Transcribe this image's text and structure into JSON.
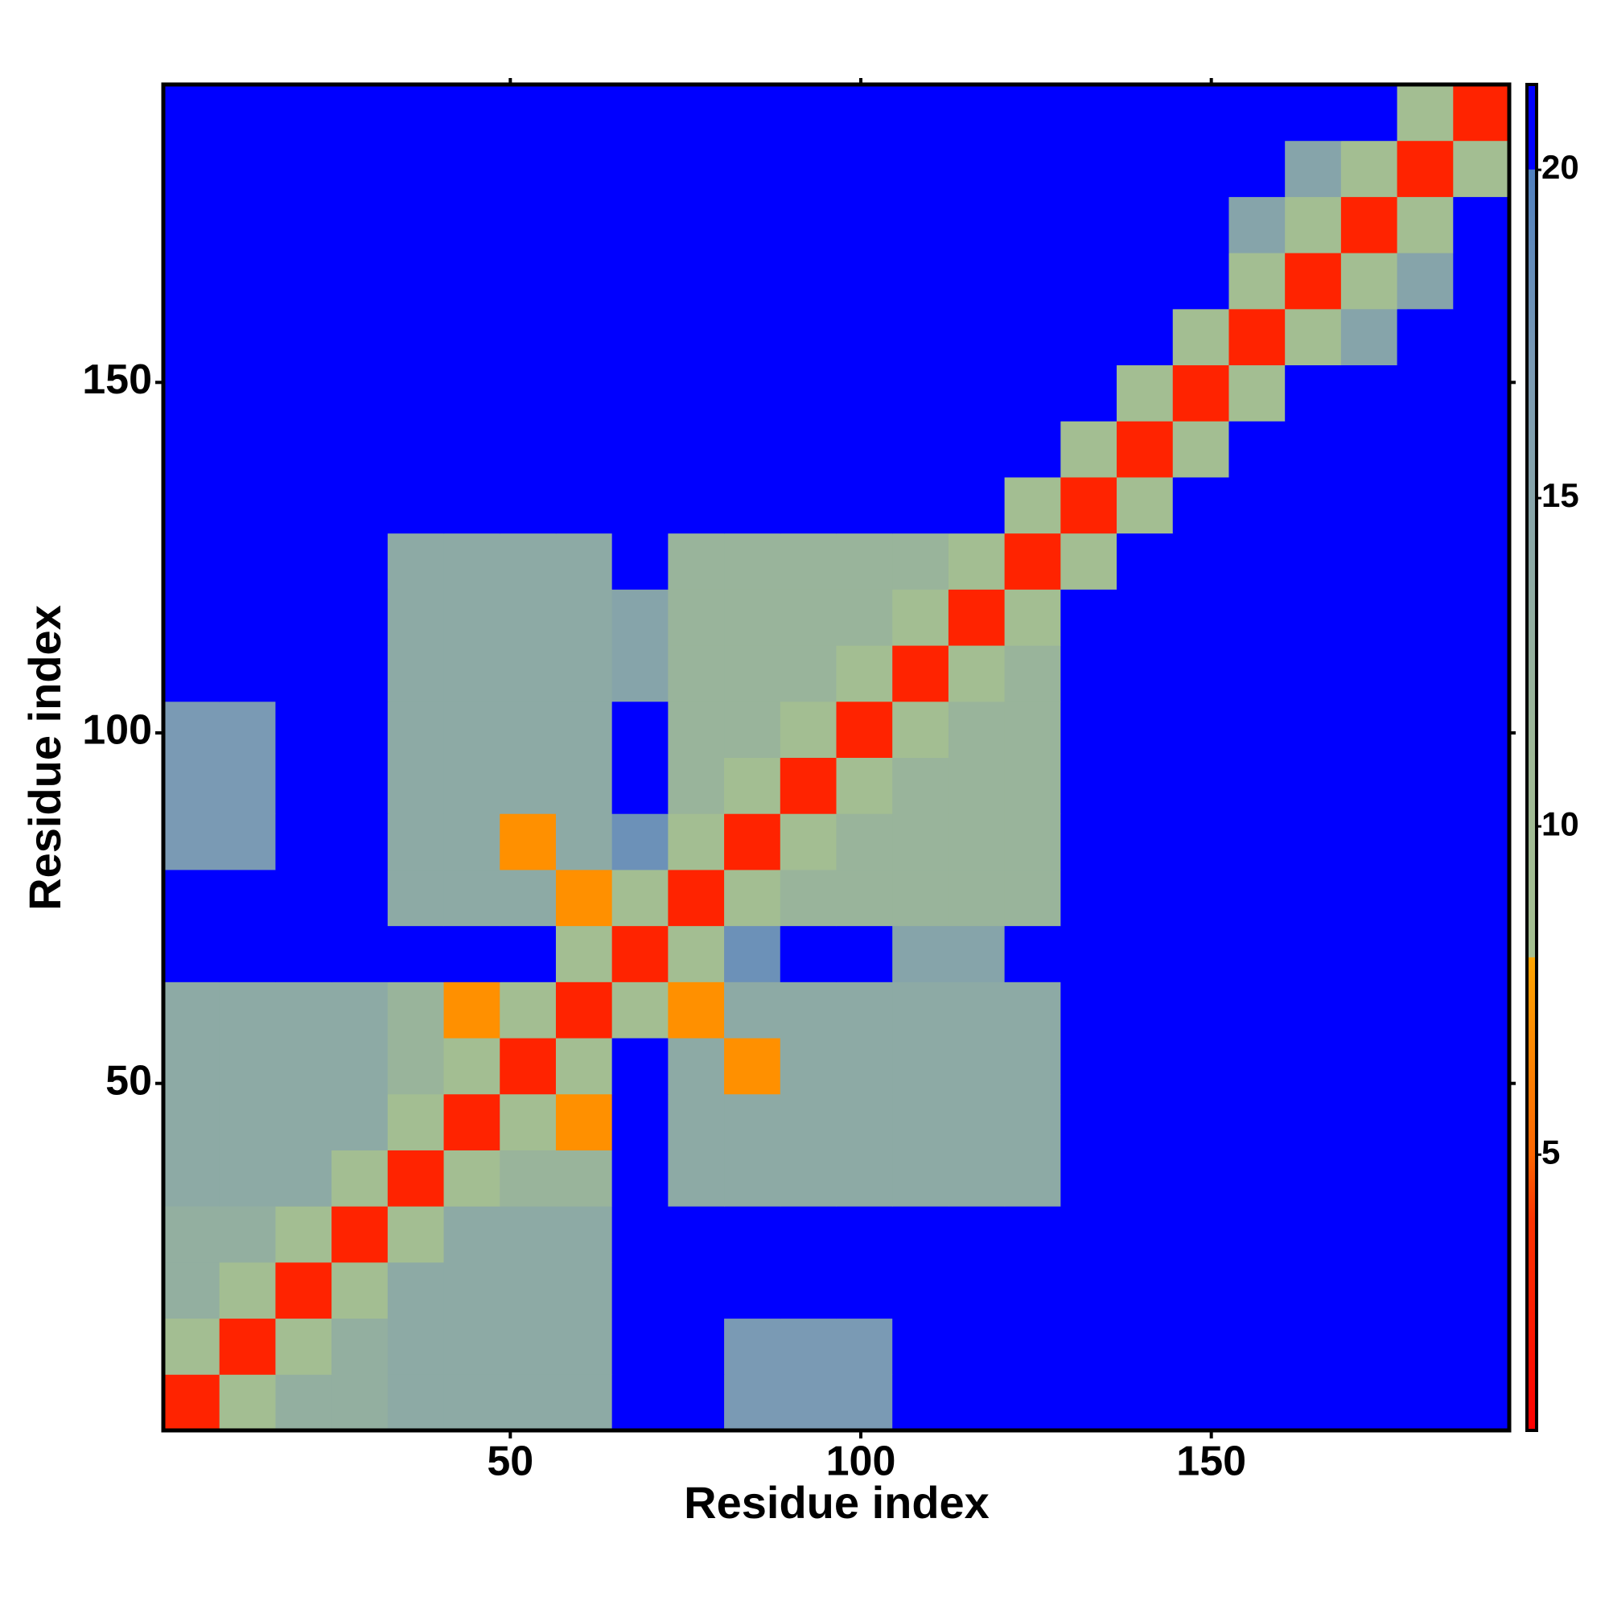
{
  "chart_data": {
    "type": "heatmap",
    "xlabel": "Residue index",
    "ylabel": "Residue index",
    "xlim": [
      0.5,
      192.5
    ],
    "ylim": [
      0.5,
      192.5
    ],
    "xticks": [
      50,
      100,
      150
    ],
    "yticks": [
      50,
      100,
      150
    ],
    "x_edges": [
      0.5,
      8.5,
      16.5,
      24.5,
      32.5,
      40.5,
      48.5,
      56.5,
      64.5,
      72.5,
      80.5,
      88.5,
      96.5,
      104.5,
      112.5,
      120.5,
      128.5,
      136.5,
      144.5,
      152.5,
      160.5,
      168.5,
      176.5,
      184.5,
      192.5
    ],
    "y_edges": [
      0.5,
      8.5,
      16.5,
      24.5,
      32.5,
      40.5,
      48.5,
      56.5,
      64.5,
      72.5,
      80.5,
      88.5,
      96.5,
      104.5,
      112.5,
      120.5,
      128.5,
      136.5,
      144.5,
      152.5,
      160.5,
      168.5,
      176.5,
      184.5,
      192.5
    ],
    "z": [
      [
        3,
        9,
        13,
        13,
        14,
        14,
        14,
        14,
        21,
        21,
        17,
        17,
        17,
        21,
        21,
        21,
        21,
        21,
        21,
        21,
        21,
        21,
        21,
        21
      ],
      [
        9,
        3,
        9,
        13,
        14,
        14,
        14,
        14,
        21,
        21,
        17,
        17,
        17,
        21,
        21,
        21,
        21,
        21,
        21,
        21,
        21,
        21,
        21,
        21
      ],
      [
        13,
        9,
        3,
        9,
        14,
        14,
        14,
        14,
        21,
        21,
        21,
        21,
        21,
        21,
        21,
        21,
        21,
        21,
        21,
        21,
        21,
        21,
        21,
        21
      ],
      [
        13,
        13,
        9,
        3,
        9,
        14,
        14,
        14,
        21,
        21,
        21,
        21,
        21,
        21,
        21,
        21,
        21,
        21,
        21,
        21,
        21,
        21,
        21,
        21
      ],
      [
        14,
        14,
        14,
        9,
        3,
        9,
        12,
        12,
        21,
        14,
        14,
        14,
        14,
        14,
        14,
        14,
        21,
        21,
        21,
        21,
        21,
        21,
        21,
        21
      ],
      [
        14,
        14,
        14,
        14,
        9,
        3,
        9,
        7,
        21,
        14,
        14,
        14,
        14,
        14,
        14,
        14,
        21,
        21,
        21,
        21,
        21,
        21,
        21,
        21
      ],
      [
        14,
        14,
        14,
        14,
        12,
        9,
        3,
        9,
        21,
        14,
        7,
        14,
        14,
        14,
        14,
        14,
        21,
        21,
        21,
        21,
        21,
        21,
        21,
        21
      ],
      [
        14,
        14,
        14,
        14,
        12,
        7,
        9,
        3,
        9,
        7,
        14,
        14,
        14,
        14,
        14,
        14,
        21,
        21,
        21,
        21,
        21,
        21,
        21,
        21
      ],
      [
        21,
        21,
        21,
        21,
        21,
        21,
        21,
        9,
        3,
        9,
        18,
        21,
        21,
        15,
        15,
        21,
        21,
        21,
        21,
        21,
        21,
        21,
        21,
        21
      ],
      [
        21,
        21,
        21,
        21,
        14,
        14,
        14,
        7,
        9,
        3,
        9,
        12,
        12,
        12,
        12,
        12,
        21,
        21,
        21,
        21,
        21,
        21,
        21,
        21
      ],
      [
        17,
        17,
        21,
        21,
        14,
        14,
        7,
        14,
        18,
        9,
        3,
        9,
        12,
        12,
        12,
        12,
        21,
        21,
        21,
        21,
        21,
        21,
        21,
        21
      ],
      [
        17,
        17,
        21,
        21,
        14,
        14,
        14,
        14,
        21,
        12,
        9,
        3,
        9,
        12,
        12,
        12,
        21,
        21,
        21,
        21,
        21,
        21,
        21,
        21
      ],
      [
        17,
        17,
        21,
        21,
        14,
        14,
        14,
        14,
        21,
        12,
        12,
        9,
        3,
        9,
        12,
        12,
        21,
        21,
        21,
        21,
        21,
        21,
        21,
        21
      ],
      [
        21,
        21,
        21,
        21,
        14,
        14,
        14,
        14,
        15,
        12,
        12,
        12,
        9,
        3,
        9,
        12,
        21,
        21,
        21,
        21,
        21,
        21,
        21,
        21
      ],
      [
        21,
        21,
        21,
        21,
        14,
        14,
        14,
        14,
        15,
        12,
        12,
        12,
        12,
        9,
        3,
        9,
        21,
        21,
        21,
        21,
        21,
        21,
        21,
        21
      ],
      [
        21,
        21,
        21,
        21,
        14,
        14,
        14,
        14,
        21,
        12,
        12,
        12,
        12,
        12,
        9,
        3,
        9,
        21,
        21,
        21,
        21,
        21,
        21,
        21
      ],
      [
        21,
        21,
        21,
        21,
        21,
        21,
        21,
        21,
        21,
        21,
        21,
        21,
        21,
        21,
        21,
        9,
        3,
        9,
        21,
        21,
        21,
        21,
        21,
        21
      ],
      [
        21,
        21,
        21,
        21,
        21,
        21,
        21,
        21,
        21,
        21,
        21,
        21,
        21,
        21,
        21,
        21,
        9,
        3,
        9,
        21,
        21,
        21,
        21,
        21
      ],
      [
        21,
        21,
        21,
        21,
        21,
        21,
        21,
        21,
        21,
        21,
        21,
        21,
        21,
        21,
        21,
        21,
        21,
        9,
        3,
        9,
        21,
        21,
        21,
        21
      ],
      [
        21,
        21,
        21,
        21,
        21,
        21,
        21,
        21,
        21,
        21,
        21,
        21,
        21,
        21,
        21,
        21,
        21,
        21,
        9,
        3,
        9,
        15,
        21,
        21
      ],
      [
        21,
        21,
        21,
        21,
        21,
        21,
        21,
        21,
        21,
        21,
        21,
        21,
        21,
        21,
        21,
        21,
        21,
        21,
        21,
        9,
        3,
        9,
        15,
        21
      ],
      [
        21,
        21,
        21,
        21,
        21,
        21,
        21,
        21,
        21,
        21,
        21,
        21,
        21,
        21,
        21,
        21,
        21,
        21,
        21,
        15,
        9,
        3,
        9,
        21
      ],
      [
        21,
        21,
        21,
        21,
        21,
        21,
        21,
        21,
        21,
        21,
        21,
        21,
        21,
        21,
        21,
        21,
        21,
        21,
        21,
        21,
        15,
        9,
        3,
        9
      ],
      [
        21,
        21,
        21,
        21,
        21,
        21,
        21,
        21,
        21,
        21,
        21,
        21,
        21,
        21,
        21,
        21,
        21,
        21,
        21,
        21,
        21,
        21,
        9,
        3
      ]
    ],
    "zlim": [
      0.8,
      21.3
    ],
    "zticks": [
      5,
      10,
      15,
      20
    ],
    "colorscale": [
      {
        "value": 0.8,
        "color": "#ff0000"
      },
      {
        "value": 4,
        "color": "#ff3300"
      },
      {
        "value": 5,
        "color": "#ff6600"
      },
      {
        "value": 8,
        "color": "#ffa500"
      },
      {
        "value": 8.01,
        "color": "#a5c090"
      },
      {
        "value": 11,
        "color": "#9fb996"
      },
      {
        "value": 17,
        "color": "#7a9ab4"
      },
      {
        "value": 20,
        "color": "#4f7fbf"
      },
      {
        "value": 20.01,
        "color": "#0000ff"
      },
      {
        "value": 21.3,
        "color": "#0000ff"
      }
    ]
  }
}
